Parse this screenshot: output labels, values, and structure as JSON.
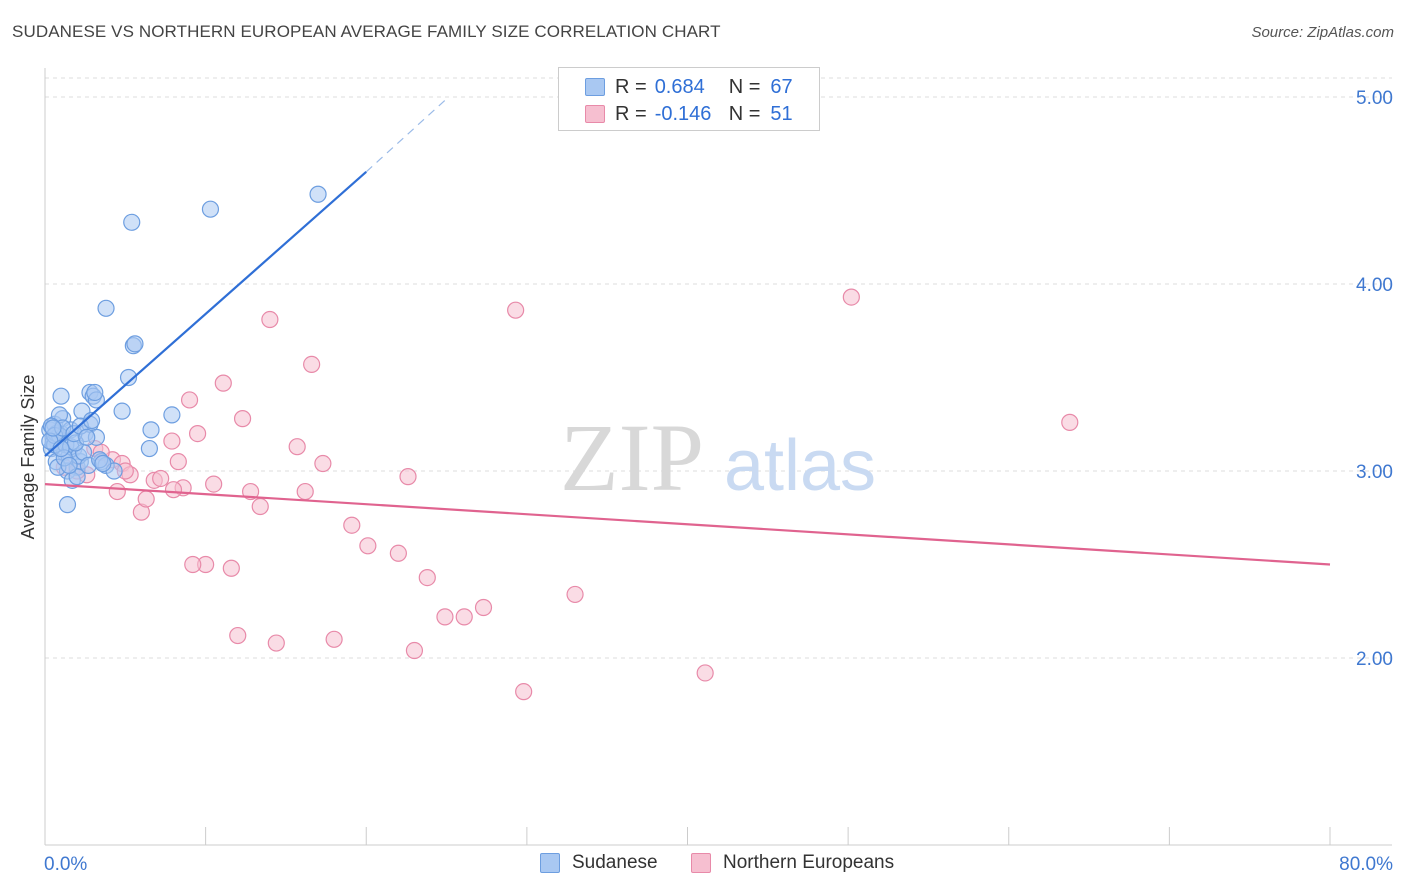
{
  "title": "SUDANESE VS NORTHERN EUROPEAN AVERAGE FAMILY SIZE CORRELATION CHART",
  "source": "Source: ZipAtlas.com",
  "watermark": {
    "zip": "ZIP",
    "atlas": "atlas"
  },
  "legend_top": {
    "rows": [
      {
        "r_label": "R =",
        "r_value": "0.684",
        "n_label": "N =",
        "n_value": "67"
      },
      {
        "r_label": "R =",
        "r_value": "-0.146",
        "n_label": "N =",
        "n_value": "51"
      }
    ]
  },
  "legend_bottom": [
    "Sudanese",
    "Northern Europeans"
  ],
  "colors": {
    "blue_fill": "#a9c8f2",
    "blue_stroke": "#6d9ee0",
    "blue_line": "#2f6fd6",
    "pink_fill": "#f6bfd0",
    "pink_stroke": "#e88aa9",
    "pink_line": "#e0638f",
    "axis_text": "#3f78d0",
    "grid": "#dddddd"
  },
  "chart_data": {
    "type": "scatter",
    "title": "SUDANESE VS NORTHERN EUROPEAN AVERAGE FAMILY SIZE CORRELATION CHART",
    "xlabel": "",
    "ylabel": "Average Family Size",
    "xlim": [
      0,
      80
    ],
    "ylim": [
      1.0,
      5.15
    ],
    "x_tick_labels": [
      {
        "value": 0,
        "label": "0.0%"
      },
      {
        "value": 80,
        "label": "80.0%"
      }
    ],
    "y_ticks": [
      {
        "value": 2.0,
        "label": "2.00"
      },
      {
        "value": 3.0,
        "label": "3.00"
      },
      {
        "value": 4.0,
        "label": "4.00"
      },
      {
        "value": 5.0,
        "label": "5.00"
      }
    ],
    "series": [
      {
        "name": "Sudanese",
        "R": 0.684,
        "N": 67,
        "trend": {
          "x0": 0.0,
          "y0": 3.08,
          "x1": 20.0,
          "y1": 4.6,
          "dash_x1": 25.0,
          "dash_y1": 4.99
        },
        "points": [
          [
            0.3,
            3.22
          ],
          [
            0.5,
            3.18
          ],
          [
            0.6,
            3.25
          ],
          [
            0.4,
            3.12
          ],
          [
            0.8,
            3.15
          ],
          [
            1.0,
            3.2
          ],
          [
            1.2,
            3.1
          ],
          [
            0.7,
            3.05
          ],
          [
            1.5,
            3.08
          ],
          [
            1.8,
            3.12
          ],
          [
            2.0,
            3.02
          ],
          [
            1.4,
            3.0
          ],
          [
            1.1,
            3.28
          ],
          [
            0.9,
            3.3
          ],
          [
            1.6,
            3.22
          ],
          [
            2.2,
            3.05
          ],
          [
            2.5,
            3.2
          ],
          [
            2.8,
            3.25
          ],
          [
            3.2,
            3.18
          ],
          [
            3.5,
            3.05
          ],
          [
            3.8,
            3.03
          ],
          [
            4.3,
            3.0
          ],
          [
            4.8,
            3.32
          ],
          [
            6.5,
            3.12
          ],
          [
            6.6,
            3.22
          ],
          [
            7.9,
            3.3
          ],
          [
            2.8,
            3.42
          ],
          [
            3.0,
            3.4
          ],
          [
            3.2,
            3.38
          ],
          [
            1.0,
            3.4
          ],
          [
            2.3,
            3.32
          ],
          [
            1.7,
            2.95
          ],
          [
            1.4,
            2.82
          ],
          [
            2.0,
            2.97
          ],
          [
            0.8,
            3.02
          ],
          [
            5.2,
            3.5
          ],
          [
            5.5,
            3.67
          ],
          [
            5.6,
            3.68
          ],
          [
            3.8,
            3.87
          ],
          [
            5.4,
            4.33
          ],
          [
            10.3,
            4.4
          ],
          [
            17.0,
            4.48
          ],
          [
            0.5,
            3.15
          ],
          [
            0.6,
            3.14
          ],
          [
            0.7,
            3.2
          ],
          [
            0.9,
            3.19
          ],
          [
            1.3,
            3.14
          ],
          [
            1.6,
            3.13
          ],
          [
            2.1,
            3.08
          ],
          [
            2.4,
            3.1
          ],
          [
            2.7,
            3.03
          ],
          [
            3.4,
            3.06
          ],
          [
            3.6,
            3.04
          ],
          [
            1.2,
            3.07
          ],
          [
            1.9,
            3.15
          ],
          [
            0.4,
            3.24
          ],
          [
            0.6,
            3.19
          ],
          [
            1.1,
            3.23
          ],
          [
            1.8,
            3.2
          ],
          [
            2.2,
            3.24
          ],
          [
            2.6,
            3.18
          ],
          [
            0.3,
            3.16
          ],
          [
            0.5,
            3.23
          ],
          [
            1.0,
            3.12
          ],
          [
            1.5,
            3.03
          ],
          [
            2.9,
            3.27
          ],
          [
            3.1,
            3.42
          ]
        ]
      },
      {
        "name": "Northern Europeans",
        "R": -0.146,
        "N": 51,
        "trend": {
          "x0": 0.0,
          "y0": 2.93,
          "x1": 80.0,
          "y1": 2.5
        },
        "points": [
          [
            1.2,
            3.02
          ],
          [
            2.6,
            2.98
          ],
          [
            3.1,
            3.12
          ],
          [
            4.2,
            3.06
          ],
          [
            4.5,
            2.89
          ],
          [
            4.8,
            3.04
          ],
          [
            5.3,
            2.98
          ],
          [
            6.0,
            2.78
          ],
          [
            6.3,
            2.85
          ],
          [
            6.8,
            2.95
          ],
          [
            7.2,
            2.96
          ],
          [
            7.9,
            3.16
          ],
          [
            8.3,
            3.05
          ],
          [
            8.6,
            2.91
          ],
          [
            9.0,
            3.38
          ],
          [
            9.5,
            3.2
          ],
          [
            10.5,
            2.93
          ],
          [
            11.1,
            3.47
          ],
          [
            11.6,
            2.48
          ],
          [
            12.3,
            3.28
          ],
          [
            12.8,
            2.89
          ],
          [
            13.4,
            2.81
          ],
          [
            14.0,
            3.81
          ],
          [
            14.4,
            2.08
          ],
          [
            15.7,
            3.13
          ],
          [
            16.2,
            2.89
          ],
          [
            16.6,
            3.57
          ],
          [
            17.3,
            3.04
          ],
          [
            18.0,
            2.1
          ],
          [
            19.1,
            2.71
          ],
          [
            20.1,
            2.6
          ],
          [
            22.0,
            2.56
          ],
          [
            22.6,
            2.97
          ],
          [
            23.0,
            2.04
          ],
          [
            23.8,
            2.43
          ],
          [
            24.9,
            2.22
          ],
          [
            26.1,
            2.22
          ],
          [
            27.3,
            2.27
          ],
          [
            29.3,
            3.86
          ],
          [
            29.8,
            1.82
          ],
          [
            33.0,
            2.34
          ],
          [
            41.1,
            1.92
          ],
          [
            50.2,
            3.93
          ],
          [
            63.8,
            3.26
          ],
          [
            10.0,
            2.5
          ],
          [
            8.0,
            2.9
          ],
          [
            3.5,
            3.1
          ],
          [
            5.0,
            3.0
          ],
          [
            2.0,
            3.0
          ],
          [
            12.0,
            2.12
          ],
          [
            9.2,
            2.5
          ]
        ]
      }
    ]
  }
}
